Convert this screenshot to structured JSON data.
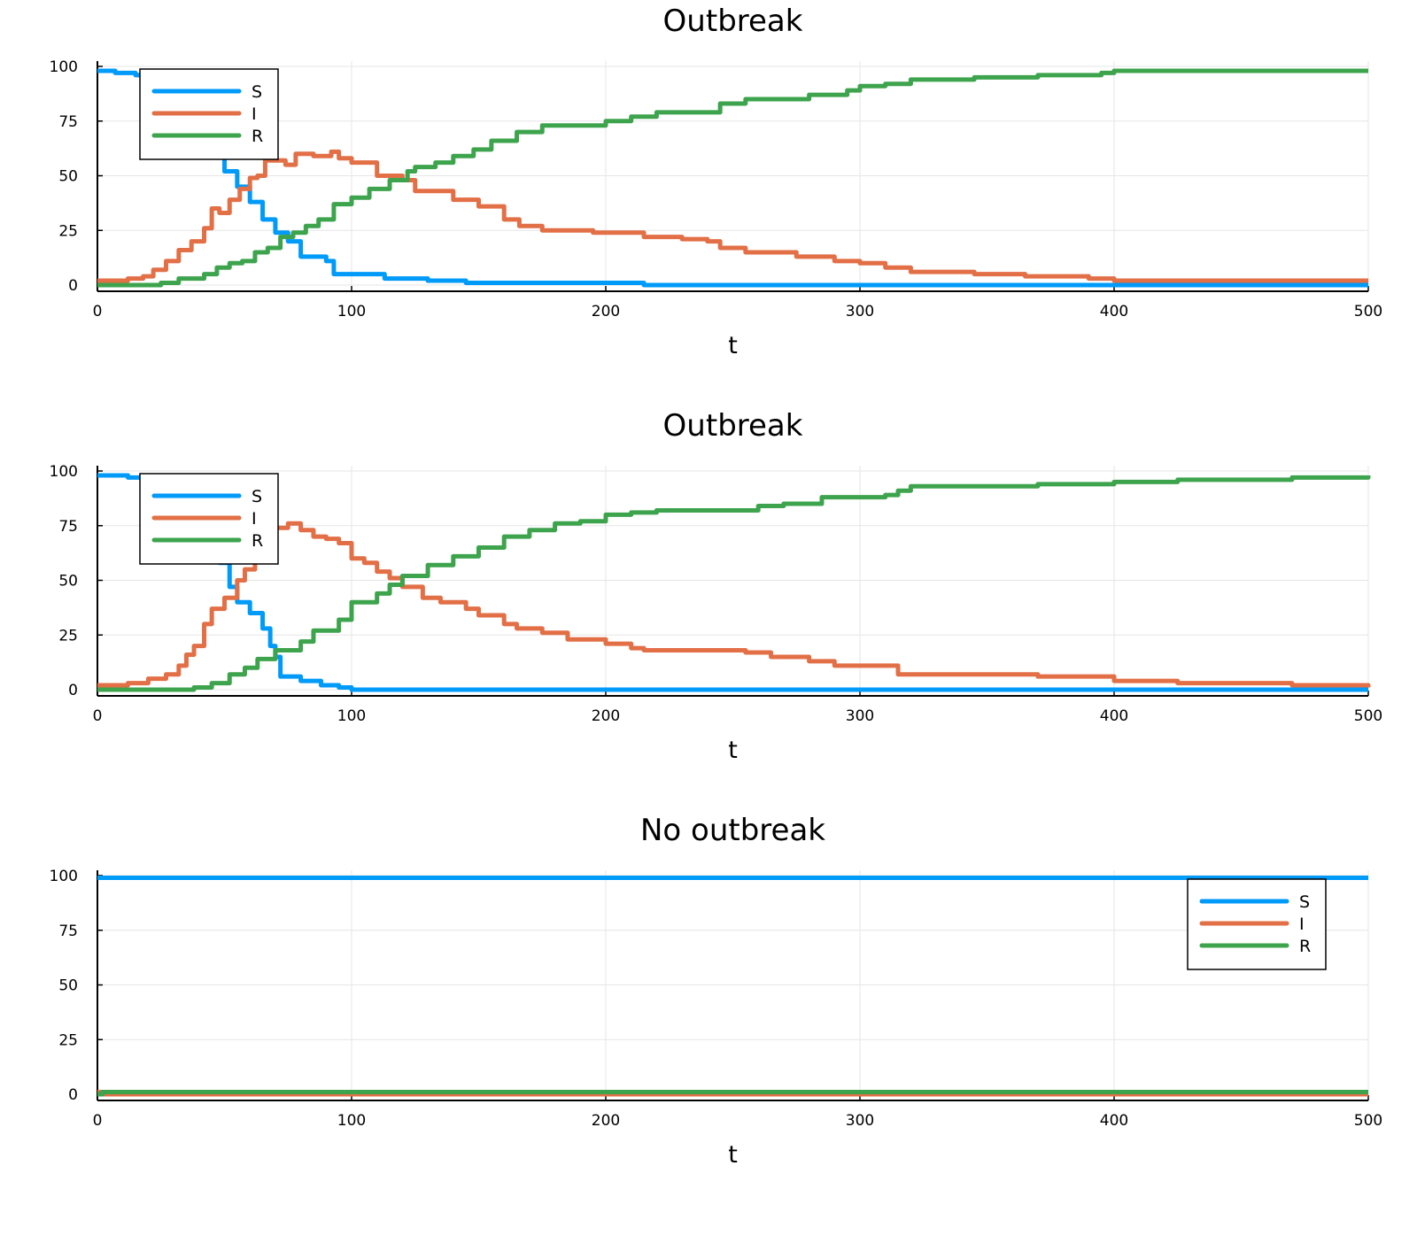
{
  "colors": {
    "S": "#009af9",
    "I": "#e26f46",
    "R": "#3da44d"
  },
  "chart_data": [
    {
      "type": "line",
      "title": "Outbreak",
      "xlabel": "t",
      "ylabel": "",
      "xlim": [
        0,
        500
      ],
      "ylim": [
        0,
        100
      ],
      "xticks": [
        0,
        100,
        200,
        300,
        400,
        500
      ],
      "yticks": [
        0,
        25,
        50,
        75,
        100
      ],
      "grid": true,
      "legend": "top-left",
      "step": true,
      "series": [
        {
          "name": "S",
          "points": [
            [
              0,
              98
            ],
            [
              7,
              97
            ],
            [
              15,
              96
            ],
            [
              30,
              90
            ],
            [
              40,
              75
            ],
            [
              45,
              62
            ],
            [
              50,
              52
            ],
            [
              55,
              45
            ],
            [
              60,
              38
            ],
            [
              65,
              30
            ],
            [
              70,
              24
            ],
            [
              75,
              20
            ],
            [
              80,
              13
            ],
            [
              90,
              11
            ],
            [
              93,
              5
            ],
            [
              100,
              5
            ],
            [
              113,
              3
            ],
            [
              130,
              2
            ],
            [
              145,
              1
            ],
            [
              215,
              0
            ],
            [
              500,
              0
            ]
          ]
        },
        {
          "name": "I",
          "points": [
            [
              0,
              2
            ],
            [
              12,
              3
            ],
            [
              18,
              4
            ],
            [
              22,
              7
            ],
            [
              27,
              11
            ],
            [
              32,
              16
            ],
            [
              37,
              20
            ],
            [
              42,
              26
            ],
            [
              45,
              35
            ],
            [
              48,
              33
            ],
            [
              52,
              39
            ],
            [
              56,
              44
            ],
            [
              60,
              49
            ],
            [
              63,
              50
            ],
            [
              66,
              57
            ],
            [
              70,
              57
            ],
            [
              74,
              55
            ],
            [
              78,
              60
            ],
            [
              85,
              59
            ],
            [
              90,
              59
            ],
            [
              92,
              61
            ],
            [
              95,
              58
            ],
            [
              100,
              56
            ],
            [
              110,
              50
            ],
            [
              120,
              48
            ],
            [
              125,
              43
            ],
            [
              133,
              43
            ],
            [
              140,
              39
            ],
            [
              150,
              36
            ],
            [
              160,
              30
            ],
            [
              166,
              27
            ],
            [
              175,
              25
            ],
            [
              195,
              24
            ],
            [
              215,
              22
            ],
            [
              230,
              21
            ],
            [
              240,
              20
            ],
            [
              245,
              17
            ],
            [
              255,
              15
            ],
            [
              275,
              13
            ],
            [
              290,
              11
            ],
            [
              300,
              10
            ],
            [
              310,
              8
            ],
            [
              320,
              6
            ],
            [
              345,
              5
            ],
            [
              365,
              4
            ],
            [
              390,
              3
            ],
            [
              400,
              2
            ],
            [
              500,
              2
            ]
          ]
        },
        {
          "name": "R",
          "points": [
            [
              0,
              0
            ],
            [
              25,
              1
            ],
            [
              32,
              3
            ],
            [
              42,
              5
            ],
            [
              47,
              8
            ],
            [
              52,
              10
            ],
            [
              57,
              11
            ],
            [
              62,
              15
            ],
            [
              67,
              17
            ],
            [
              72,
              22
            ],
            [
              77,
              24
            ],
            [
              82,
              27
            ],
            [
              87,
              30
            ],
            [
              93,
              37
            ],
            [
              100,
              40
            ],
            [
              107,
              44
            ],
            [
              115,
              48
            ],
            [
              122,
              52
            ],
            [
              125,
              54
            ],
            [
              133,
              56
            ],
            [
              140,
              59
            ],
            [
              148,
              62
            ],
            [
              155,
              66
            ],
            [
              165,
              70
            ],
            [
              175,
              73
            ],
            [
              200,
              75
            ],
            [
              210,
              77
            ],
            [
              220,
              79
            ],
            [
              240,
              79
            ],
            [
              245,
              83
            ],
            [
              255,
              85
            ],
            [
              280,
              87
            ],
            [
              295,
              89
            ],
            [
              300,
              91
            ],
            [
              310,
              92
            ],
            [
              320,
              94
            ],
            [
              345,
              95
            ],
            [
              370,
              96
            ],
            [
              395,
              97
            ],
            [
              400,
              98
            ],
            [
              500,
              98
            ]
          ]
        }
      ]
    },
    {
      "type": "line",
      "title": "Outbreak",
      "xlabel": "t",
      "ylabel": "",
      "xlim": [
        0,
        500
      ],
      "ylim": [
        0,
        100
      ],
      "xticks": [
        0,
        100,
        200,
        300,
        400,
        500
      ],
      "yticks": [
        0,
        25,
        50,
        75,
        100
      ],
      "grid": true,
      "legend": "top-left",
      "step": true,
      "series": [
        {
          "name": "S",
          "points": [
            [
              0,
              98
            ],
            [
              12,
              97
            ],
            [
              20,
              96
            ],
            [
              35,
              85
            ],
            [
              45,
              63
            ],
            [
              48,
              58
            ],
            [
              52,
              47
            ],
            [
              55,
              40
            ],
            [
              60,
              35
            ],
            [
              65,
              28
            ],
            [
              68,
              20
            ],
            [
              70,
              15
            ],
            [
              72,
              6
            ],
            [
              80,
              4
            ],
            [
              88,
              2
            ],
            [
              95,
              1
            ],
            [
              100,
              0
            ],
            [
              500,
              0
            ]
          ]
        },
        {
          "name": "I",
          "points": [
            [
              0,
              2
            ],
            [
              12,
              3
            ],
            [
              20,
              5
            ],
            [
              27,
              7
            ],
            [
              32,
              11
            ],
            [
              35,
              16
            ],
            [
              38,
              20
            ],
            [
              42,
              30
            ],
            [
              45,
              37
            ],
            [
              50,
              42
            ],
            [
              55,
              50
            ],
            [
              58,
              55
            ],
            [
              62,
              60
            ],
            [
              66,
              67
            ],
            [
              70,
              74
            ],
            [
              75,
              76
            ],
            [
              80,
              73
            ],
            [
              85,
              70
            ],
            [
              90,
              69
            ],
            [
              95,
              67
            ],
            [
              100,
              60
            ],
            [
              105,
              58
            ],
            [
              110,
              54
            ],
            [
              115,
              51
            ],
            [
              120,
              47
            ],
            [
              128,
              42
            ],
            [
              135,
              40
            ],
            [
              145,
              37
            ],
            [
              150,
              34
            ],
            [
              160,
              30
            ],
            [
              165,
              28
            ],
            [
              175,
              26
            ],
            [
              185,
              23
            ],
            [
              200,
              21
            ],
            [
              210,
              19
            ],
            [
              215,
              18
            ],
            [
              255,
              17
            ],
            [
              265,
              15
            ],
            [
              280,
              13
            ],
            [
              290,
              11
            ],
            [
              315,
              7
            ],
            [
              370,
              6
            ],
            [
              400,
              4
            ],
            [
              425,
              3
            ],
            [
              470,
              2
            ],
            [
              500,
              1
            ]
          ]
        },
        {
          "name": "R",
          "points": [
            [
              0,
              0
            ],
            [
              38,
              1
            ],
            [
              45,
              3
            ],
            [
              52,
              7
            ],
            [
              58,
              10
            ],
            [
              63,
              14
            ],
            [
              70,
              18
            ],
            [
              80,
              22
            ],
            [
              85,
              27
            ],
            [
              95,
              32
            ],
            [
              100,
              40
            ],
            [
              110,
              44
            ],
            [
              115,
              48
            ],
            [
              120,
              52
            ],
            [
              130,
              57
            ],
            [
              140,
              61
            ],
            [
              150,
              65
            ],
            [
              160,
              70
            ],
            [
              170,
              73
            ],
            [
              180,
              76
            ],
            [
              190,
              77
            ],
            [
              200,
              80
            ],
            [
              210,
              81
            ],
            [
              220,
              82
            ],
            [
              255,
              82
            ],
            [
              260,
              84
            ],
            [
              270,
              85
            ],
            [
              285,
              88
            ],
            [
              310,
              89
            ],
            [
              315,
              91
            ],
            [
              320,
              93
            ],
            [
              370,
              94
            ],
            [
              400,
              95
            ],
            [
              425,
              96
            ],
            [
              470,
              97
            ],
            [
              500,
              98
            ]
          ]
        }
      ]
    },
    {
      "type": "line",
      "title": "No outbreak",
      "xlabel": "t",
      "ylabel": "",
      "xlim": [
        0,
        500
      ],
      "ylim": [
        0,
        100
      ],
      "xticks": [
        0,
        100,
        200,
        300,
        400,
        500
      ],
      "yticks": [
        0,
        25,
        50,
        75,
        100
      ],
      "grid": true,
      "legend": "top-right",
      "step": true,
      "series": [
        {
          "name": "S",
          "points": [
            [
              0,
              99
            ],
            [
              500,
              99
            ]
          ]
        },
        {
          "name": "I",
          "points": [
            [
              0,
              1
            ],
            [
              2,
              0
            ],
            [
              500,
              0
            ]
          ]
        },
        {
          "name": "R",
          "points": [
            [
              0,
              0
            ],
            [
              2,
              1
            ],
            [
              500,
              1
            ]
          ]
        }
      ]
    }
  ]
}
